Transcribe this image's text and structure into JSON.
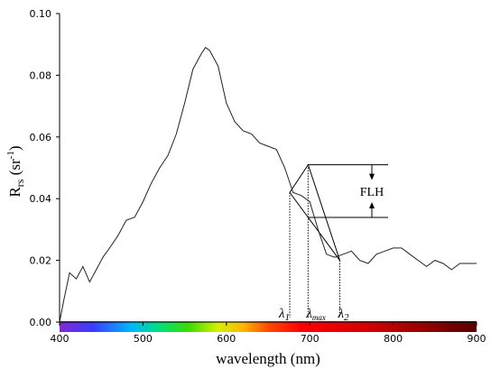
{
  "chart_data": {
    "type": "line",
    "xlabel": "wavelength (nm)",
    "ylabel": {
      "main": "R",
      "sub": "rs",
      "unit_open": " (sr",
      "unit_exp": "-1",
      "unit_close": ")"
    },
    "xlim": [
      400,
      900
    ],
    "ylim": [
      0.0,
      0.1
    ],
    "x_ticks": [
      400,
      500,
      600,
      700,
      800,
      900
    ],
    "y_ticks": [
      "0.00",
      "0.02",
      "0.04",
      "0.06",
      "0.08",
      "0.10"
    ],
    "grid": false,
    "color_bar": "visible spectrum gradient under x-axis (violet to dark red)",
    "series": [
      {
        "x": [
          400,
          405,
          412,
          420,
          428,
          436,
          444,
          452,
          460,
          470,
          480,
          490,
          500,
          510,
          520,
          530,
          540,
          550,
          560,
          570,
          575,
          580,
          590,
          600,
          610,
          620,
          630,
          640,
          650,
          660,
          670,
          680,
          690,
          700,
          710,
          720,
          730,
          740,
          750,
          760,
          770,
          780,
          790,
          800,
          810,
          820,
          830,
          840,
          850,
          860,
          870,
          880,
          890,
          900
        ],
        "values": [
          0.0,
          0.007,
          0.016,
          0.014,
          0.018,
          0.013,
          0.017,
          0.021,
          0.024,
          0.028,
          0.033,
          0.034,
          0.039,
          0.045,
          0.05,
          0.054,
          0.061,
          0.071,
          0.082,
          0.087,
          0.089,
          0.088,
          0.083,
          0.071,
          0.065,
          0.062,
          0.061,
          0.058,
          0.057,
          0.056,
          0.05,
          0.042,
          0.041,
          0.039,
          0.03,
          0.022,
          0.021,
          0.022,
          0.023,
          0.02,
          0.019,
          0.022,
          0.023,
          0.024,
          0.024,
          0.022,
          0.02,
          0.018,
          0.02,
          0.019,
          0.017,
          0.019,
          0.019,
          0.019
        ]
      }
    ],
    "annotations": {
      "baseline_x": [
        676,
        736
      ],
      "baseline_y": [
        0.042,
        0.02
      ],
      "peak_x": 698,
      "peak_y": 0.051,
      "peak_curve_x": [
        676,
        698,
        736
      ],
      "peak_curve_y": [
        0.042,
        0.051,
        0.02
      ],
      "flh_label": "FLH",
      "labels": [
        {
          "base": "λ",
          "sub": "1",
          "x": 676
        },
        {
          "base": "λ",
          "sub": "max",
          "x": 698
        },
        {
          "base": "λ",
          "sub": "2",
          "x": 736
        }
      ]
    }
  }
}
